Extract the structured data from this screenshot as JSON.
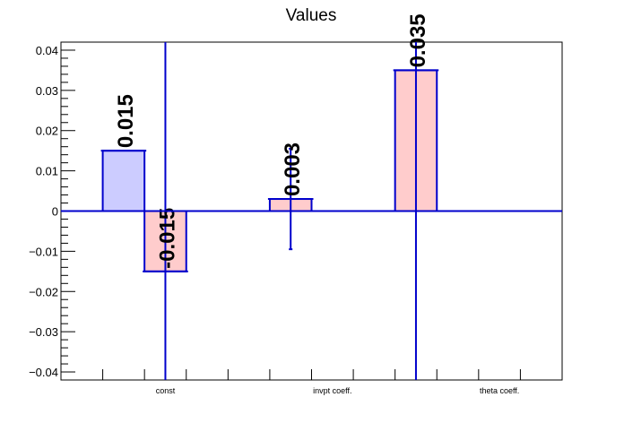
{
  "chart_data": {
    "type": "bar",
    "title": "Values",
    "xlabel": "",
    "ylabel": "",
    "categories": [
      "const",
      "invpt coeff.",
      "theta coeff."
    ],
    "ylim": [
      -0.042,
      0.042
    ],
    "yticks": [
      -0.04,
      -0.03,
      -0.02,
      -0.01,
      0,
      0.01,
      0.02,
      0.03,
      0.04
    ],
    "ytick_labels": [
      "−0.04",
      "−0.03",
      "−0.02",
      "−0.01",
      "0",
      "0.01",
      "0.02",
      "0.03",
      "0.04"
    ],
    "bars": [
      {
        "value": 0.015,
        "label": "0.015",
        "fill": "#ccccff",
        "error": null
      },
      {
        "value": -0.015,
        "label": "-0.015",
        "fill": "#ffcccc",
        "error": 0.1
      },
      {
        "value": 0.003,
        "label": "0.003",
        "fill": "#ffcccc",
        "error": 0.0125
      },
      {
        "value": 0.035,
        "label": "0.035",
        "fill": "#ffcccc",
        "error": 0.1
      }
    ],
    "grid": false,
    "colors": {
      "bar_stroke": "#0000cc",
      "axis": "#000000",
      "label_text": "#000000"
    }
  }
}
